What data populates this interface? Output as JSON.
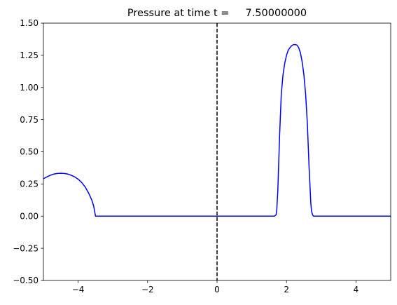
{
  "chart_data": {
    "type": "line",
    "title": "Pressure at time t =     7.50000000",
    "xlabel": "",
    "ylabel": "",
    "xlim": [
      -5,
      5
    ],
    "ylim": [
      -0.5,
      1.5
    ],
    "grid": false,
    "x_ticks": [
      {
        "value": -4,
        "label": "−4"
      },
      {
        "value": -2,
        "label": "−2"
      },
      {
        "value": 0,
        "label": "0"
      },
      {
        "value": 2,
        "label": "2"
      },
      {
        "value": 4,
        "label": "4"
      }
    ],
    "y_ticks": [
      {
        "value": -0.5,
        "label": "−0.50"
      },
      {
        "value": -0.25,
        "label": "−0.25"
      },
      {
        "value": 0.0,
        "label": "0.00"
      },
      {
        "value": 0.25,
        "label": "0.25"
      },
      {
        "value": 0.5,
        "label": "0.50"
      },
      {
        "value": 0.75,
        "label": "0.75"
      },
      {
        "value": 1.0,
        "label": "1.00"
      },
      {
        "value": 1.25,
        "label": "1.25"
      },
      {
        "value": 1.5,
        "label": "1.50"
      }
    ],
    "reference_line": {
      "orientation": "vertical",
      "x": 0,
      "style": "dashed",
      "color": "#000000"
    },
    "series": [
      {
        "color": "#0000ff",
        "x": [
          -5.0,
          -4.9,
          -4.8,
          -4.7,
          -4.6,
          -4.5,
          -4.4,
          -4.3,
          -4.2,
          -4.1,
          -4.0,
          -3.9,
          -3.8,
          -3.7,
          -3.6,
          -3.55,
          -3.52,
          -3.5,
          -3.45,
          -3.0,
          -2.0,
          -1.0,
          0.0,
          1.0,
          1.5,
          1.65,
          1.7,
          1.72,
          1.75,
          1.8,
          1.85,
          1.9,
          1.95,
          2.0,
          2.05,
          2.1,
          2.15,
          2.2,
          2.25,
          2.3,
          2.35,
          2.4,
          2.45,
          2.5,
          2.55,
          2.6,
          2.65,
          2.7,
          2.72,
          2.75,
          2.78,
          2.8,
          2.85,
          3.0,
          4.0,
          5.0
        ],
        "y": [
          0.29,
          0.305,
          0.318,
          0.327,
          0.332,
          0.333,
          0.332,
          0.327,
          0.318,
          0.305,
          0.287,
          0.262,
          0.228,
          0.18,
          0.12,
          0.075,
          0.03,
          0.0,
          0.0,
          0.0,
          0.0,
          0.0,
          0.0,
          0.0,
          0.0,
          0.0,
          0.01,
          0.05,
          0.2,
          0.62,
          0.95,
          1.1,
          1.19,
          1.25,
          1.29,
          1.31,
          1.325,
          1.333,
          1.333,
          1.33,
          1.31,
          1.27,
          1.2,
          1.1,
          0.95,
          0.72,
          0.38,
          0.1,
          0.04,
          0.01,
          0.0,
          0.0,
          0.0,
          0.0,
          0.0,
          0.0
        ]
      }
    ]
  }
}
